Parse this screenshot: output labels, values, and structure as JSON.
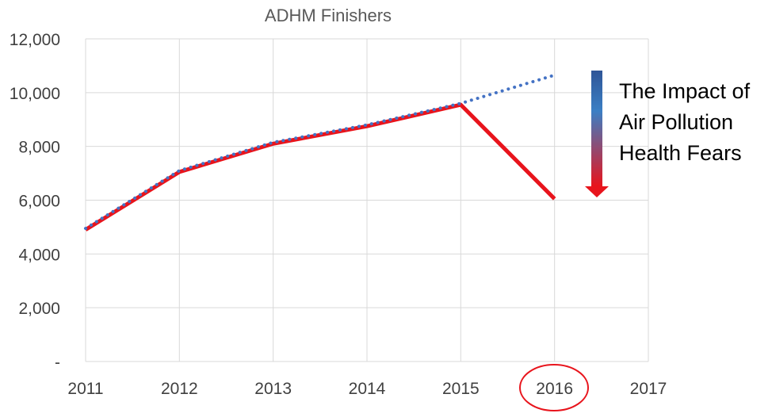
{
  "chart_data": {
    "type": "line",
    "title": "ADHM Finishers",
    "xlabel": "",
    "ylabel": "",
    "x_ticks": [
      "2011",
      "2012",
      "2013",
      "2014",
      "2015",
      "2016",
      "2017"
    ],
    "y_ticks": [
      "-",
      "2,000",
      "4,000",
      "6,000",
      "8,000",
      "10,000",
      "12,000"
    ],
    "xlim": [
      2011,
      2017
    ],
    "ylim": [
      0,
      12000
    ],
    "grid": true,
    "legend": "none",
    "series": [
      {
        "x": [
          2011,
          2012,
          2013,
          2014,
          2015,
          2016
        ],
        "values": [
          4900,
          7050,
          8100,
          8750,
          9550,
          6050
        ],
        "color": "#e8141c",
        "style": "solid"
      },
      {
        "x": [
          2011,
          2012,
          2013,
          2014,
          2015,
          2016
        ],
        "values": [
          4950,
          7100,
          8150,
          8800,
          9600,
          10650
        ],
        "color": "#4472c4",
        "style": "dotted"
      }
    ],
    "highlight": {
      "category": "2016",
      "shape": "ellipse",
      "color": "#e8141c"
    },
    "annotation": {
      "lines": [
        "The Impact of",
        "Air Pollution",
        "Health Fears"
      ],
      "arrow": "down",
      "arrow_colors": [
        "#2f5597",
        "#e8141c"
      ]
    }
  }
}
